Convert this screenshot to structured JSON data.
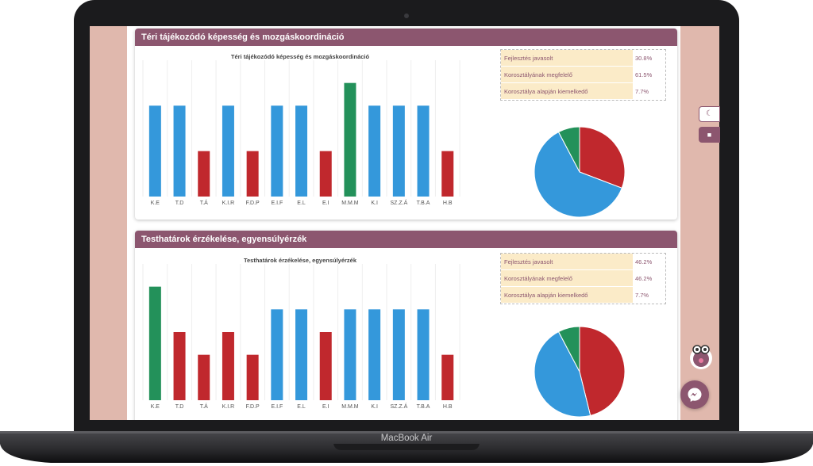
{
  "device": {
    "brand_label": "MacBook Air"
  },
  "colors": {
    "blue": "#3498db",
    "red": "#c0282d",
    "green": "#23915a",
    "header": "#8c566f",
    "page_bg": "#e0b8ad"
  },
  "side_tabs": {
    "moon_icon": "moon-icon",
    "chat_icon": "comment-icon"
  },
  "sections": [
    {
      "header": "Téri tájékozódó képesség és mozgáskoordináció",
      "chart_title": "Téri tájékozódó képesség és mozgáskoordináció",
      "legend": [
        {
          "label": "Fejlesztés javasolt",
          "value": "30.8%"
        },
        {
          "label": "Korosztályának megfelelő",
          "value": "61.5%"
        },
        {
          "label": "Korosztálya alapján kiemelkedő",
          "value": "7.7%"
        }
      ]
    },
    {
      "header": "Testhatárok érzékelése, egyensúlyérzék",
      "chart_title": "Testhatárok érzékelése, egyensúlyérzék",
      "legend": [
        {
          "label": "Fejlesztés javasolt",
          "value": "46.2%"
        },
        {
          "label": "Korosztályának megfelelő",
          "value": "46.2%"
        },
        {
          "label": "Korosztálya alapján kiemelkedő",
          "value": "7.7%"
        }
      ]
    }
  ],
  "chart_data": [
    {
      "type": "bar",
      "title": "Téri tájékozódó képesség és mozgáskoordináció",
      "categories": [
        "K.E",
        "T.D",
        "T.Á",
        "K.I.R",
        "F.D.P",
        "E.I.F",
        "E.L",
        "E.I",
        "M.M.M",
        "K.I",
        "SZ.Z.Á",
        "T.B.A",
        "H.B"
      ],
      "values": [
        2,
        2,
        1,
        2,
        1,
        2,
        2,
        1,
        2.5,
        2,
        2,
        2,
        1
      ],
      "colors": [
        "blue",
        "blue",
        "red",
        "blue",
        "red",
        "blue",
        "blue",
        "red",
        "green",
        "blue",
        "blue",
        "blue",
        "red"
      ],
      "ylim": [
        0,
        3
      ],
      "grid": true
    },
    {
      "type": "pie",
      "labels": [
        "Fejlesztés javasolt",
        "Korosztályának megfelelő",
        "Korosztálya alapján kiemelkedő"
      ],
      "values": [
        30.8,
        61.5,
        7.7
      ],
      "colors": [
        "red",
        "blue",
        "green"
      ]
    },
    {
      "type": "bar",
      "title": "Testhatárok érzékelése, egyensúlyérzék",
      "categories": [
        "K.E",
        "T.D",
        "T.Á",
        "K.I.R",
        "F.D.P",
        "E.I.F",
        "E.L",
        "E.I",
        "M.M.M",
        "K.I",
        "SZ.Z.Á",
        "T.B.A",
        "H.B"
      ],
      "values": [
        2.5,
        1.5,
        1,
        1.5,
        1,
        2,
        2,
        1.5,
        2,
        2,
        2,
        2,
        1
      ],
      "colors": [
        "green",
        "red",
        "red",
        "red",
        "red",
        "blue",
        "blue",
        "red",
        "blue",
        "blue",
        "blue",
        "blue",
        "red"
      ],
      "ylim": [
        0,
        3
      ],
      "grid": true
    },
    {
      "type": "pie",
      "labels": [
        "Fejlesztés javasolt",
        "Korosztályának megfelelő",
        "Korosztálya alapján kiemelkedő"
      ],
      "values": [
        46.2,
        46.2,
        7.7
      ],
      "colors": [
        "red",
        "blue",
        "green"
      ]
    }
  ]
}
